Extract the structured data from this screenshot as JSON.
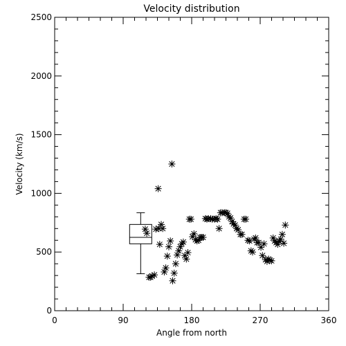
{
  "chart_data": {
    "type": "scatter",
    "title": "Velocity distribution",
    "xlabel": "Angle from north",
    "ylabel": "Velocity (km/s)",
    "xlim": [
      0,
      360
    ],
    "ylim": [
      0,
      2500
    ],
    "xticks": [
      0,
      90,
      180,
      270,
      360
    ],
    "xtick_labels": [
      "0",
      "90",
      "180",
      "270",
      "360"
    ],
    "yticks": [
      0,
      500,
      1000,
      1500,
      2000,
      2500
    ],
    "ytick_labels": [
      "0",
      "500",
      "1000",
      "1500",
      "2000",
      "2500"
    ],
    "grid": false,
    "marker": "asterisk",
    "boxplot": {
      "x": 113,
      "whisker_low": 315,
      "q1": 570,
      "median": 625,
      "q3": 735,
      "whisker_high": 835
    },
    "points": [
      {
        "x": 119,
        "y": 695
      },
      {
        "x": 121,
        "y": 660
      },
      {
        "x": 124,
        "y": 285
      },
      {
        "x": 126,
        "y": 285
      },
      {
        "x": 128,
        "y": 295
      },
      {
        "x": 131,
        "y": 305
      },
      {
        "x": 133,
        "y": 695
      },
      {
        "x": 136,
        "y": 1040
      },
      {
        "x": 137,
        "y": 700
      },
      {
        "x": 138,
        "y": 565
      },
      {
        "x": 140,
        "y": 735
      },
      {
        "x": 142,
        "y": 700
      },
      {
        "x": 144,
        "y": 330
      },
      {
        "x": 146,
        "y": 365
      },
      {
        "x": 148,
        "y": 465
      },
      {
        "x": 150,
        "y": 545
      },
      {
        "x": 152,
        "y": 595
      },
      {
        "x": 154,
        "y": 1250
      },
      {
        "x": 155,
        "y": 255
      },
      {
        "x": 157,
        "y": 320
      },
      {
        "x": 159,
        "y": 400
      },
      {
        "x": 161,
        "y": 475
      },
      {
        "x": 163,
        "y": 510
      },
      {
        "x": 165,
        "y": 545
      },
      {
        "x": 167,
        "y": 570
      },
      {
        "x": 169,
        "y": 585
      },
      {
        "x": 171,
        "y": 470
      },
      {
        "x": 173,
        "y": 440
      },
      {
        "x": 175,
        "y": 495
      },
      {
        "x": 177,
        "y": 780
      },
      {
        "x": 179,
        "y": 780
      },
      {
        "x": 181,
        "y": 630
      },
      {
        "x": 183,
        "y": 655
      },
      {
        "x": 185,
        "y": 605
      },
      {
        "x": 187,
        "y": 595
      },
      {
        "x": 189,
        "y": 600
      },
      {
        "x": 191,
        "y": 625
      },
      {
        "x": 193,
        "y": 625
      },
      {
        "x": 195,
        "y": 625
      },
      {
        "x": 198,
        "y": 785
      },
      {
        "x": 200,
        "y": 780
      },
      {
        "x": 202,
        "y": 785
      },
      {
        "x": 205,
        "y": 785
      },
      {
        "x": 207,
        "y": 780
      },
      {
        "x": 210,
        "y": 780
      },
      {
        "x": 212,
        "y": 785
      },
      {
        "x": 214,
        "y": 780
      },
      {
        "x": 216,
        "y": 700
      },
      {
        "x": 218,
        "y": 835
      },
      {
        "x": 220,
        "y": 835
      },
      {
        "x": 223,
        "y": 835
      },
      {
        "x": 225,
        "y": 835
      },
      {
        "x": 227,
        "y": 830
      },
      {
        "x": 229,
        "y": 800
      },
      {
        "x": 231,
        "y": 790
      },
      {
        "x": 233,
        "y": 760
      },
      {
        "x": 235,
        "y": 740
      },
      {
        "x": 237,
        "y": 730
      },
      {
        "x": 239,
        "y": 700
      },
      {
        "x": 241,
        "y": 690
      },
      {
        "x": 244,
        "y": 650
      },
      {
        "x": 246,
        "y": 650
      },
      {
        "x": 249,
        "y": 780
      },
      {
        "x": 251,
        "y": 780
      },
      {
        "x": 254,
        "y": 600
      },
      {
        "x": 256,
        "y": 595
      },
      {
        "x": 258,
        "y": 510
      },
      {
        "x": 260,
        "y": 500
      },
      {
        "x": 262,
        "y": 610
      },
      {
        "x": 264,
        "y": 620
      },
      {
        "x": 266,
        "y": 580
      },
      {
        "x": 268,
        "y": 580
      },
      {
        "x": 271,
        "y": 540
      },
      {
        "x": 273,
        "y": 470
      },
      {
        "x": 275,
        "y": 570
      },
      {
        "x": 277,
        "y": 435
      },
      {
        "x": 279,
        "y": 420
      },
      {
        "x": 281,
        "y": 440
      },
      {
        "x": 283,
        "y": 430
      },
      {
        "x": 285,
        "y": 425
      },
      {
        "x": 287,
        "y": 620
      },
      {
        "x": 289,
        "y": 595
      },
      {
        "x": 291,
        "y": 580
      },
      {
        "x": 293,
        "y": 565
      },
      {
        "x": 295,
        "y": 590
      },
      {
        "x": 297,
        "y": 610
      },
      {
        "x": 299,
        "y": 650
      },
      {
        "x": 301,
        "y": 575
      },
      {
        "x": 303,
        "y": 730
      }
    ]
  }
}
